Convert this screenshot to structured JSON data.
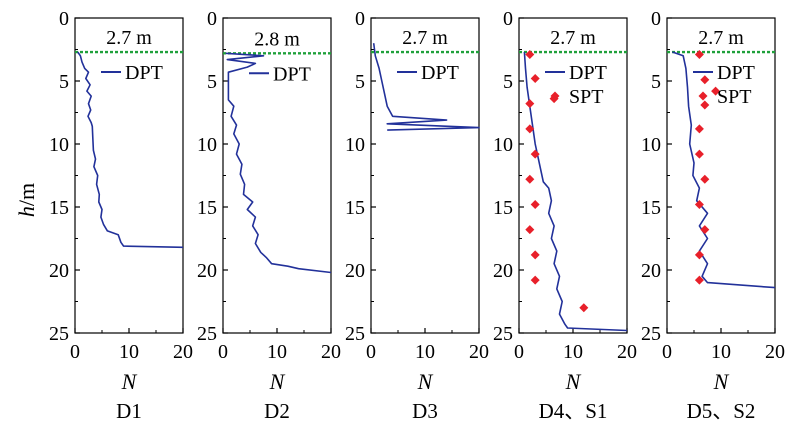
{
  "figure": {
    "ylabel_italic": "h",
    "ylabel_unit": "/m",
    "xlabel": "N"
  },
  "chart_data": [
    {
      "type": "line",
      "panel": "D1",
      "water_table": {
        "depth": 2.7,
        "label": "2.7 m"
      },
      "xlim": [
        0,
        20
      ],
      "ylim": [
        0,
        25
      ],
      "y_inverted": true,
      "xticks": [
        "0",
        "10",
        "20"
      ],
      "yticks": [
        "0",
        "5",
        "10",
        "15",
        "20",
        "25"
      ],
      "legend": [
        {
          "label": "DPT",
          "marker": "line"
        }
      ],
      "series": [
        {
          "name": "DPT",
          "kind": "line",
          "color": "#22319a",
          "points": [
            [
              0.5,
              2.7
            ],
            [
              1,
              3.0
            ],
            [
              1.3,
              3.5
            ],
            [
              1.8,
              4.0
            ],
            [
              2.5,
              4.3
            ],
            [
              2.0,
              4.8
            ],
            [
              2.8,
              5.3
            ],
            [
              2.2,
              5.8
            ],
            [
              3.0,
              6.2
            ],
            [
              2.5,
              6.8
            ],
            [
              2.9,
              7.3
            ],
            [
              2.4,
              7.8
            ],
            [
              3.0,
              8.3
            ],
            [
              3.2,
              8.6
            ],
            [
              3.3,
              9.5
            ],
            [
              3.4,
              10.5
            ],
            [
              3.8,
              11.2
            ],
            [
              3.5,
              11.8
            ],
            [
              4.2,
              12.5
            ],
            [
              4.0,
              13.2
            ],
            [
              4.5,
              14.0
            ],
            [
              4.4,
              14.6
            ],
            [
              5.0,
              15.2
            ],
            [
              4.8,
              15.8
            ],
            [
              5.3,
              16.4
            ],
            [
              6.0,
              16.9
            ],
            [
              8.0,
              17.2
            ],
            [
              8.5,
              17.8
            ],
            [
              9.0,
              18.1
            ],
            [
              20,
              18.2
            ]
          ]
        }
      ]
    },
    {
      "type": "line",
      "panel": "D2",
      "water_table": {
        "depth": 2.8,
        "label": "2.8 m"
      },
      "xlim": [
        0,
        20
      ],
      "ylim": [
        0,
        25
      ],
      "y_inverted": true,
      "xticks": [
        "0",
        "10",
        "20"
      ],
      "yticks": [
        "0",
        "5",
        "10",
        "15",
        "20",
        "25"
      ],
      "legend": [
        {
          "label": "DPT",
          "marker": "line"
        }
      ],
      "series": [
        {
          "name": "DPT",
          "kind": "line",
          "color": "#22319a",
          "points": [
            [
              0.5,
              2.8
            ],
            [
              7.5,
              3.0
            ],
            [
              0.8,
              3.3
            ],
            [
              6.0,
              3.6
            ],
            [
              4.5,
              3.9
            ],
            [
              1.0,
              4.3
            ],
            [
              1.0,
              6.5
            ],
            [
              2.0,
              7.0
            ],
            [
              1.5,
              7.8
            ],
            [
              2.5,
              8.5
            ],
            [
              2.0,
              9.2
            ],
            [
              3.0,
              10.0
            ],
            [
              2.5,
              10.8
            ],
            [
              3.5,
              11.6
            ],
            [
              3.2,
              12.4
            ],
            [
              4.0,
              13.2
            ],
            [
              3.8,
              14.0
            ],
            [
              5.5,
              14.6
            ],
            [
              4.5,
              15.2
            ],
            [
              6.0,
              15.8
            ],
            [
              5.5,
              16.5
            ],
            [
              6.5,
              17.2
            ],
            [
              6.0,
              17.9
            ],
            [
              7.0,
              18.6
            ],
            [
              8.0,
              19.0
            ],
            [
              9.0,
              19.5
            ],
            [
              12.0,
              19.7
            ],
            [
              14.0,
              19.9
            ],
            [
              20,
              20.2
            ]
          ]
        }
      ]
    },
    {
      "type": "line",
      "panel": "D3",
      "water_table": {
        "depth": 2.7,
        "label": "2.7 m"
      },
      "xlim": [
        0,
        20
      ],
      "ylim": [
        0,
        25
      ],
      "y_inverted": true,
      "xticks": [
        "0",
        "10",
        "20"
      ],
      "yticks": [
        "0",
        "5",
        "10",
        "15",
        "20",
        "25"
      ],
      "legend": [
        {
          "label": "DPT",
          "marker": "line"
        }
      ],
      "series": [
        {
          "name": "DPT",
          "kind": "line",
          "color": "#22319a",
          "points": [
            [
              0.5,
              2.0
            ],
            [
              0.8,
              3.0
            ],
            [
              1.5,
              4.0
            ],
            [
              2.0,
              5.0
            ],
            [
              2.5,
              6.0
            ],
            [
              3.0,
              7.0
            ],
            [
              4.0,
              7.8
            ],
            [
              14.0,
              8.1
            ],
            [
              3.0,
              8.4
            ],
            [
              20,
              8.7
            ],
            [
              3.0,
              8.9
            ]
          ]
        }
      ]
    },
    {
      "type": "line",
      "panel": "D4、S1",
      "water_table": {
        "depth": 2.7,
        "label": "2.7 m"
      },
      "xlim": [
        0,
        20
      ],
      "ylim": [
        0,
        25
      ],
      "y_inverted": true,
      "xticks": [
        "0",
        "10",
        "20"
      ],
      "yticks": [
        "0",
        "5",
        "10",
        "15",
        "20",
        "25"
      ],
      "legend": [
        {
          "label": "DPT",
          "marker": "line"
        },
        {
          "label": "SPT",
          "marker": "diamond"
        }
      ],
      "series": [
        {
          "name": "DPT",
          "kind": "line",
          "color": "#22319a",
          "points": [
            [
              1.0,
              2.7
            ],
            [
              1.2,
              4.0
            ],
            [
              1.5,
              5.5
            ],
            [
              2.0,
              7.0
            ],
            [
              2.5,
              8.5
            ],
            [
              3.0,
              10.0
            ],
            [
              3.5,
              11.0
            ],
            [
              4.0,
              12.0
            ],
            [
              4.5,
              13.0
            ],
            [
              5.5,
              13.5
            ],
            [
              6.0,
              14.5
            ],
            [
              5.5,
              15.5
            ],
            [
              6.5,
              16.5
            ],
            [
              6.0,
              17.5
            ],
            [
              7.0,
              18.5
            ],
            [
              6.5,
              19.5
            ],
            [
              7.5,
              20.5
            ],
            [
              7.0,
              21.5
            ],
            [
              8.0,
              22.5
            ],
            [
              7.5,
              23.5
            ],
            [
              8.5,
              24.3
            ],
            [
              9.0,
              24.6
            ],
            [
              20,
              24.8
            ]
          ]
        },
        {
          "name": "SPT",
          "kind": "scatter",
          "color": "#e8202a",
          "points": [
            [
              2,
              2.9
            ],
            [
              3,
              4.8
            ],
            [
              2,
              6.8
            ],
            [
              6.5,
              6.4
            ],
            [
              2,
              8.8
            ],
            [
              3,
              10.8
            ],
            [
              2,
              12.8
            ],
            [
              3,
              14.8
            ],
            [
              2,
              16.8
            ],
            [
              3,
              18.8
            ],
            [
              3,
              20.8
            ],
            [
              12,
              23.0
            ]
          ]
        }
      ]
    },
    {
      "type": "line",
      "panel": "D5、S2",
      "water_table": {
        "depth": 2.7,
        "label": "2.7 m"
      },
      "xlim": [
        0,
        20
      ],
      "ylim": [
        0,
        25
      ],
      "y_inverted": true,
      "xticks": [
        "0",
        "10",
        "20"
      ],
      "yticks": [
        "0",
        "5",
        "10",
        "15",
        "20",
        "25"
      ],
      "legend": [
        {
          "label": "DPT",
          "marker": "line"
        },
        {
          "label": "SPT",
          "marker": "diamond"
        }
      ],
      "series": [
        {
          "name": "DPT",
          "kind": "line",
          "color": "#22319a",
          "points": [
            [
              1.0,
              2.7
            ],
            [
              3.0,
              3.0
            ],
            [
              3.5,
              4.0
            ],
            [
              3.8,
              5.5
            ],
            [
              4.0,
              7.0
            ],
            [
              4.5,
              8.5
            ],
            [
              4.2,
              10.0
            ],
            [
              5.0,
              11.5
            ],
            [
              4.8,
              12.5
            ],
            [
              6.0,
              13.5
            ],
            [
              5.5,
              14.5
            ],
            [
              7.5,
              15.5
            ],
            [
              6.0,
              16.5
            ],
            [
              7.5,
              17.5
            ],
            [
              6.0,
              18.5
            ],
            [
              7.5,
              19.5
            ],
            [
              6.5,
              20.5
            ],
            [
              7.5,
              21.0
            ],
            [
              20,
              21.4
            ]
          ]
        },
        {
          "name": "SPT",
          "kind": "scatter",
          "color": "#e8202a",
          "points": [
            [
              6,
              2.9
            ],
            [
              7,
              4.9
            ],
            [
              9,
              5.8
            ],
            [
              7,
              6.9
            ],
            [
              6,
              8.8
            ],
            [
              6,
              10.8
            ],
            [
              7,
              12.8
            ],
            [
              6,
              14.8
            ],
            [
              7,
              16.8
            ],
            [
              6,
              18.8
            ],
            [
              6,
              20.8
            ]
          ]
        }
      ]
    }
  ]
}
